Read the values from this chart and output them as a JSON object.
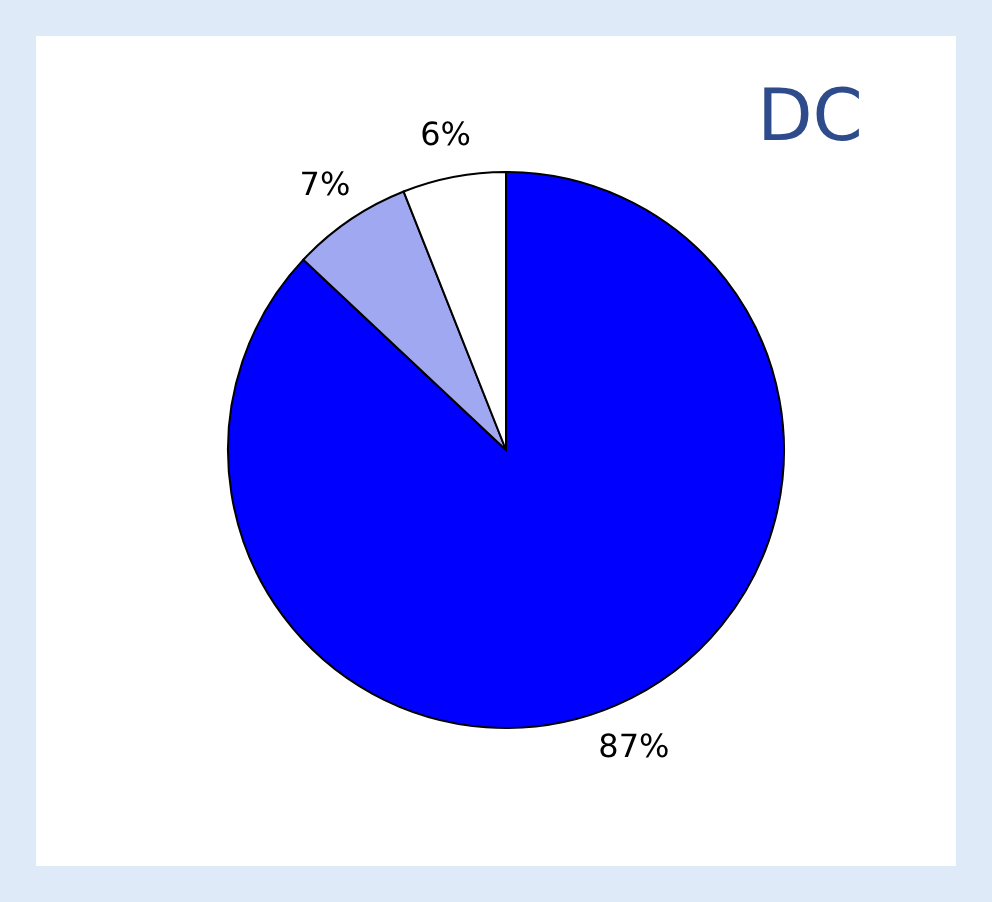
{
  "chart_data": {
    "type": "pie",
    "title": "DC",
    "categories": [
      null,
      null,
      null
    ],
    "values": [
      87,
      7,
      6
    ],
    "colors": [
      "#0000ff",
      "#9fa8f0",
      "#ffffff"
    ],
    "value_labels": [
      "87%",
      "7%",
      "6%"
    ]
  }
}
